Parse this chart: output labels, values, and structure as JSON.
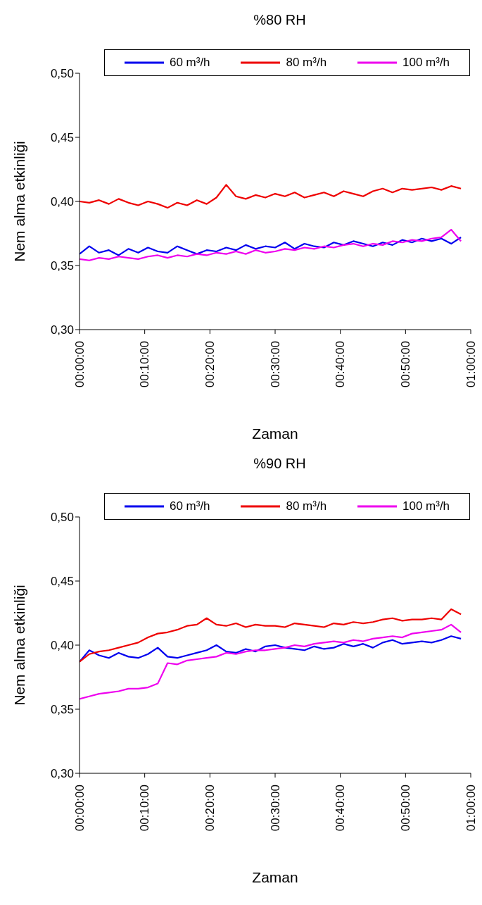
{
  "chart_data": [
    {
      "type": "line",
      "title": "%80 RH",
      "xlabel": "Zaman",
      "ylabel": "Nem alma etkinliği",
      "legend": "top",
      "grid": false,
      "marker": "none",
      "line_style": "solid",
      "x": [
        0,
        0.025,
        0.05,
        0.075,
        0.1,
        0.125,
        0.15,
        0.175,
        0.2,
        0.225,
        0.25,
        0.275,
        0.3,
        0.325,
        0.35,
        0.375,
        0.4,
        0.425,
        0.45,
        0.475,
        0.5,
        0.525,
        0.55,
        0.575,
        0.6,
        0.625,
        0.65,
        0.675,
        0.7,
        0.725,
        0.75,
        0.775,
        0.8,
        0.825,
        0.85,
        0.875,
        0.9,
        0.925,
        0.95,
        0.975
      ],
      "xlim": [
        0,
        1
      ],
      "xticks": [
        {
          "value": 0,
          "label": "00:00:00"
        },
        {
          "value": 0.16667,
          "label": "00:10:00"
        },
        {
          "value": 0.33333,
          "label": "00:20:00"
        },
        {
          "value": 0.5,
          "label": "00:30:00"
        },
        {
          "value": 0.66667,
          "label": "00:40:00"
        },
        {
          "value": 0.83333,
          "label": "00:50:00"
        },
        {
          "value": 1,
          "label": "01:00:00"
        }
      ],
      "ylim": [
        0.3,
        0.5
      ],
      "yticks": [
        {
          "value": 0.3,
          "label": "0,30"
        },
        {
          "value": 0.35,
          "label": "0,35"
        },
        {
          "value": 0.4,
          "label": "0,40"
        },
        {
          "value": 0.45,
          "label": "0,45"
        },
        {
          "value": 0.5,
          "label": "0,50"
        }
      ],
      "series": [
        {
          "name": "60 m³/h",
          "color": "#0000ee",
          "values": [
            0.359,
            0.365,
            0.36,
            0.362,
            0.358,
            0.363,
            0.36,
            0.364,
            0.361,
            0.36,
            0.365,
            0.362,
            0.359,
            0.362,
            0.361,
            0.364,
            0.362,
            0.366,
            0.363,
            0.365,
            0.364,
            0.368,
            0.363,
            0.367,
            0.365,
            0.364,
            0.368,
            0.366,
            0.369,
            0.367,
            0.365,
            0.368,
            0.366,
            0.37,
            0.368,
            0.371,
            0.369,
            0.371,
            0.367,
            0.372
          ]
        },
        {
          "name": "80 m³/h",
          "color": "#ee0000",
          "values": [
            0.4,
            0.399,
            0.401,
            0.398,
            0.402,
            0.399,
            0.397,
            0.4,
            0.398,
            0.395,
            0.399,
            0.397,
            0.401,
            0.398,
            0.403,
            0.413,
            0.404,
            0.402,
            0.405,
            0.403,
            0.406,
            0.404,
            0.407,
            0.403,
            0.405,
            0.407,
            0.404,
            0.408,
            0.406,
            0.404,
            0.408,
            0.41,
            0.407,
            0.41,
            0.409,
            0.41,
            0.411,
            0.409,
            0.412,
            0.41
          ]
        },
        {
          "name": "100 m³/h",
          "color": "#ee00ee",
          "values": [
            0.355,
            0.354,
            0.356,
            0.355,
            0.357,
            0.356,
            0.355,
            0.357,
            0.358,
            0.356,
            0.358,
            0.357,
            0.359,
            0.358,
            0.36,
            0.359,
            0.361,
            0.359,
            0.362,
            0.36,
            0.361,
            0.363,
            0.362,
            0.364,
            0.363,
            0.365,
            0.364,
            0.366,
            0.367,
            0.365,
            0.367,
            0.366,
            0.369,
            0.368,
            0.37,
            0.369,
            0.371,
            0.372,
            0.378,
            0.369
          ]
        }
      ]
    },
    {
      "type": "line",
      "title": "%90 RH",
      "xlabel": "Zaman",
      "ylabel": "Nem alma etkinliği",
      "legend": "top",
      "grid": false,
      "marker": "none",
      "line_style": "solid",
      "x": [
        0,
        0.025,
        0.05,
        0.075,
        0.1,
        0.125,
        0.15,
        0.175,
        0.2,
        0.225,
        0.25,
        0.275,
        0.3,
        0.325,
        0.35,
        0.375,
        0.4,
        0.425,
        0.45,
        0.475,
        0.5,
        0.525,
        0.55,
        0.575,
        0.6,
        0.625,
        0.65,
        0.675,
        0.7,
        0.725,
        0.75,
        0.775,
        0.8,
        0.825,
        0.85,
        0.875,
        0.9,
        0.925,
        0.95,
        0.975
      ],
      "xlim": [
        0,
        1
      ],
      "xticks": [
        {
          "value": 0,
          "label": "00:00:00"
        },
        {
          "value": 0.16667,
          "label": "00:10:00"
        },
        {
          "value": 0.33333,
          "label": "00:20:00"
        },
        {
          "value": 0.5,
          "label": "00:30:00"
        },
        {
          "value": 0.66667,
          "label": "00:40:00"
        },
        {
          "value": 0.83333,
          "label": "00:50:00"
        },
        {
          "value": 1,
          "label": "01:00:00"
        }
      ],
      "ylim": [
        0.3,
        0.5
      ],
      "yticks": [
        {
          "value": 0.3,
          "label": "0,30"
        },
        {
          "value": 0.35,
          "label": "0,35"
        },
        {
          "value": 0.4,
          "label": "0,40"
        },
        {
          "value": 0.45,
          "label": "0,45"
        },
        {
          "value": 0.5,
          "label": "0,50"
        }
      ],
      "series": [
        {
          "name": "60 m³/h",
          "color": "#0000ee",
          "values": [
            0.387,
            0.396,
            0.392,
            0.39,
            0.394,
            0.391,
            0.39,
            0.393,
            0.398,
            0.391,
            0.39,
            0.392,
            0.394,
            0.396,
            0.4,
            0.395,
            0.394,
            0.397,
            0.395,
            0.399,
            0.4,
            0.398,
            0.397,
            0.396,
            0.399,
            0.397,
            0.398,
            0.401,
            0.399,
            0.401,
            0.398,
            0.402,
            0.404,
            0.401,
            0.402,
            0.403,
            0.402,
            0.404,
            0.407,
            0.405
          ]
        },
        {
          "name": "80 m³/h",
          "color": "#ee0000",
          "values": [
            0.387,
            0.393,
            0.395,
            0.396,
            0.398,
            0.4,
            0.402,
            0.406,
            0.409,
            0.41,
            0.412,
            0.415,
            0.416,
            0.421,
            0.416,
            0.415,
            0.417,
            0.414,
            0.416,
            0.415,
            0.415,
            0.414,
            0.417,
            0.416,
            0.415,
            0.414,
            0.417,
            0.416,
            0.418,
            0.417,
            0.418,
            0.42,
            0.421,
            0.419,
            0.42,
            0.42,
            0.421,
            0.42,
            0.428,
            0.424
          ]
        },
        {
          "name": "100 m³/h",
          "color": "#ee00ee",
          "values": [
            0.358,
            0.36,
            0.362,
            0.363,
            0.364,
            0.366,
            0.366,
            0.367,
            0.37,
            0.386,
            0.385,
            0.388,
            0.389,
            0.39,
            0.391,
            0.394,
            0.393,
            0.395,
            0.396,
            0.396,
            0.397,
            0.398,
            0.4,
            0.399,
            0.401,
            0.402,
            0.403,
            0.402,
            0.404,
            0.403,
            0.405,
            0.406,
            0.407,
            0.406,
            0.409,
            0.41,
            0.411,
            0.412,
            0.416,
            0.41
          ]
        }
      ]
    }
  ]
}
